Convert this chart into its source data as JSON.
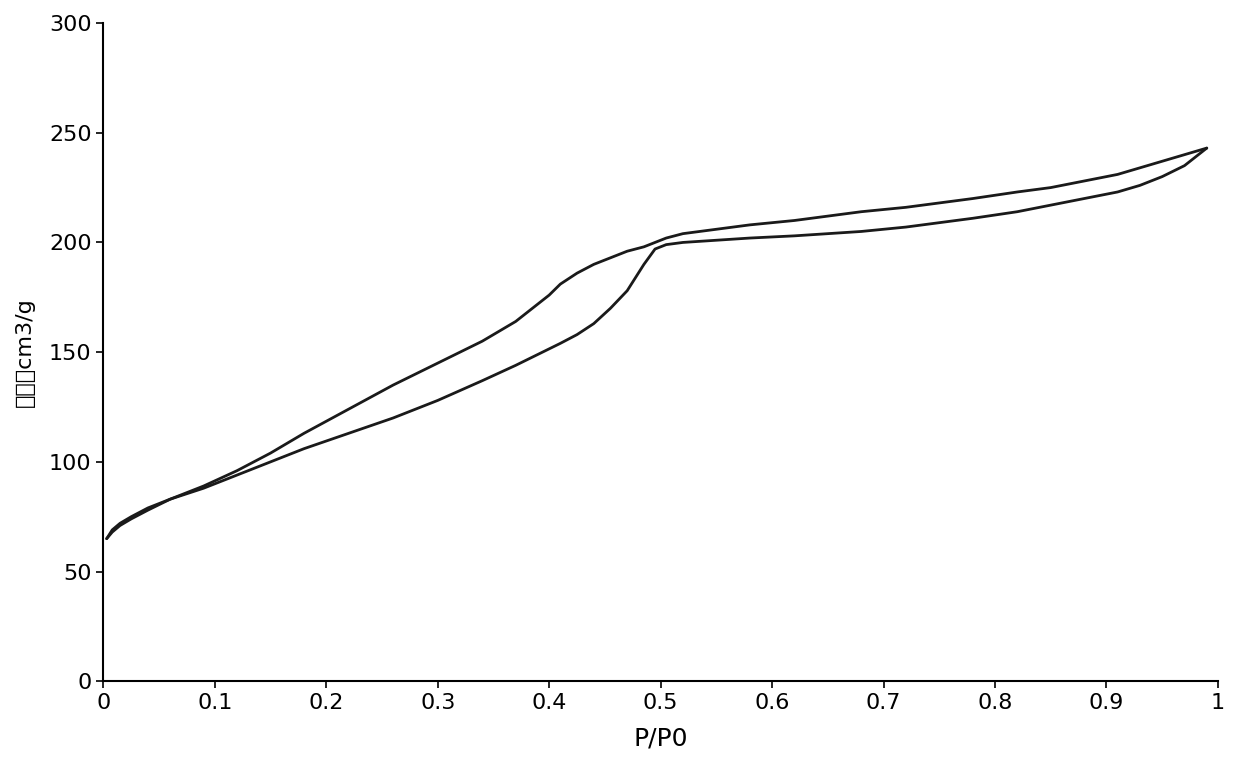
{
  "title": "",
  "xlabel": "P/P0",
  "ylabel": "吸附量cm3/g",
  "xlim": [
    0,
    1.0
  ],
  "ylim": [
    0,
    300
  ],
  "xticks": [
    0,
    0.1,
    0.2,
    0.3,
    0.4,
    0.5,
    0.6,
    0.7,
    0.8,
    0.9,
    1.0
  ],
  "yticks": [
    0,
    50,
    100,
    150,
    200,
    250,
    300
  ],
  "background_color": "#ffffff",
  "line_color": "#1a1a1a",
  "line_width": 2.0,
  "adsorption_x": [
    0.003,
    0.008,
    0.015,
    0.025,
    0.04,
    0.06,
    0.09,
    0.12,
    0.15,
    0.18,
    0.22,
    0.26,
    0.3,
    0.34,
    0.37,
    0.39,
    0.41,
    0.425,
    0.44,
    0.455,
    0.47,
    0.485,
    0.495,
    0.505,
    0.52,
    0.55,
    0.58,
    0.62,
    0.65,
    0.68,
    0.72,
    0.75,
    0.78,
    0.82,
    0.85,
    0.88,
    0.91,
    0.93,
    0.95,
    0.97,
    0.99
  ],
  "adsorption_y": [
    65,
    69,
    72,
    75,
    79,
    83,
    88,
    94,
    100,
    106,
    113,
    120,
    128,
    137,
    144,
    149,
    154,
    158,
    163,
    170,
    178,
    190,
    197,
    199,
    200,
    201,
    202,
    203,
    204,
    205,
    207,
    209,
    211,
    214,
    217,
    220,
    223,
    226,
    230,
    235,
    243
  ],
  "desorption_x": [
    0.99,
    0.97,
    0.95,
    0.93,
    0.91,
    0.88,
    0.85,
    0.82,
    0.78,
    0.75,
    0.72,
    0.68,
    0.65,
    0.62,
    0.58,
    0.55,
    0.52,
    0.505,
    0.495,
    0.485,
    0.47,
    0.455,
    0.44,
    0.425,
    0.41,
    0.4,
    0.385,
    0.37,
    0.34,
    0.3,
    0.26,
    0.22,
    0.18,
    0.15,
    0.12,
    0.09,
    0.06,
    0.04,
    0.025,
    0.015,
    0.008,
    0.003
  ],
  "desorption_y": [
    243,
    240,
    237,
    234,
    231,
    228,
    225,
    223,
    220,
    218,
    216,
    214,
    212,
    210,
    208,
    206,
    204,
    202,
    200,
    198,
    196,
    193,
    190,
    186,
    181,
    176,
    170,
    164,
    155,
    145,
    135,
    124,
    113,
    104,
    96,
    89,
    83,
    78,
    74,
    71,
    68,
    65
  ]
}
